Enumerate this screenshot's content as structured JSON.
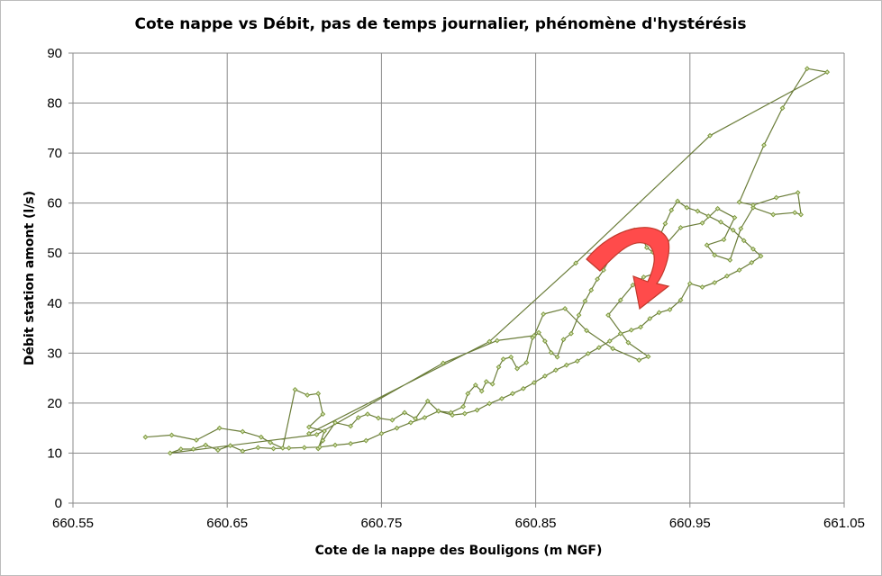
{
  "chart_data": {
    "type": "scatter",
    "title": "Cote nappe vs Débit, pas de temps journalier, phénomène d'hystérésis",
    "xlabel": "Cote de la nappe des Bouligons (m NGF)",
    "ylabel": "Débit station amont (l/s)",
    "xlim": [
      660.55,
      661.05
    ],
    "ylim": [
      0,
      90
    ],
    "x_ticks": [
      660.55,
      660.65,
      660.75,
      660.85,
      660.95,
      661.05
    ],
    "x_tick_labels": [
      "660.55",
      "660.65",
      "660.75",
      "660.85",
      "660.95",
      "661.05"
    ],
    "y_ticks": [
      0,
      10,
      20,
      30,
      40,
      50,
      60,
      70,
      80,
      90
    ],
    "y_tick_labels": [
      "0",
      "10",
      "20",
      "30",
      "40",
      "50",
      "60",
      "70",
      "80",
      "90"
    ],
    "grid": true,
    "legend": "none",
    "colors": {
      "line": "#6b7d3a",
      "marker": "#7e9a3e",
      "arrow_fill": "#ff4b4b",
      "arrow_stroke": "#c0392b"
    },
    "annotation": {
      "type": "curved-arrow",
      "meaning": "counter-clockwise hysteresis direction"
    },
    "series": [
      {
        "values": [
          [
            660.597,
            13.2
          ],
          [
            660.614,
            13.6
          ],
          [
            660.63,
            12.6
          ],
          [
            660.645,
            15.0
          ],
          [
            660.66,
            14.3
          ],
          [
            660.672,
            13.2
          ],
          [
            660.678,
            12.1
          ],
          [
            660.686,
            11.0
          ],
          [
            660.694,
            22.7
          ],
          [
            660.702,
            21.6
          ],
          [
            660.709,
            21.9
          ],
          [
            660.712,
            17.8
          ],
          [
            660.703,
            15.2
          ],
          [
            660.713,
            14.4
          ],
          [
            660.709,
            10.9
          ],
          [
            660.712,
            12.5
          ],
          [
            660.72,
            16.1
          ],
          [
            660.73,
            15.4
          ],
          [
            660.735,
            17.1
          ],
          [
            660.741,
            17.8
          ],
          [
            660.748,
            17.0
          ],
          [
            660.757,
            16.6
          ],
          [
            660.765,
            18.1
          ],
          [
            660.772,
            16.9
          ],
          [
            660.78,
            20.4
          ],
          [
            660.787,
            18.4
          ],
          [
            660.795,
            18.1
          ],
          [
            660.803,
            19.3
          ],
          [
            660.806,
            21.9
          ],
          [
            660.811,
            23.6
          ],
          [
            660.815,
            22.4
          ],
          [
            660.818,
            24.3
          ],
          [
            660.822,
            23.8
          ],
          [
            660.826,
            27.2
          ],
          [
            660.829,
            28.8
          ],
          [
            660.834,
            29.2
          ],
          [
            660.838,
            26.9
          ],
          [
            660.844,
            28.1
          ],
          [
            660.848,
            33.1
          ],
          [
            660.852,
            34.1
          ],
          [
            660.856,
            32.4
          ],
          [
            660.86,
            30.1
          ],
          [
            660.864,
            29.2
          ],
          [
            660.868,
            32.7
          ],
          [
            660.873,
            33.9
          ],
          [
            660.878,
            37.6
          ],
          [
            660.882,
            40.4
          ],
          [
            660.886,
            42.6
          ],
          [
            660.89,
            44.8
          ],
          [
            660.894,
            46.6
          ],
          [
            660.898,
            48.9
          ],
          [
            660.902,
            50.4
          ],
          [
            660.906,
            52.1
          ],
          [
            660.91,
            53.6
          ],
          [
            660.914,
            54.6
          ],
          [
            660.918,
            53.8
          ],
          [
            660.922,
            51.1
          ],
          [
            660.926,
            50.2
          ],
          [
            660.93,
            53.1
          ],
          [
            660.934,
            55.9
          ],
          [
            660.938,
            58.6
          ],
          [
            660.942,
            60.4
          ],
          [
            660.948,
            59.1
          ],
          [
            660.955,
            58.4
          ],
          [
            660.962,
            57.4
          ],
          [
            660.97,
            56.2
          ],
          [
            660.978,
            54.6
          ],
          [
            660.985,
            52.5
          ],
          [
            660.991,
            50.8
          ],
          [
            660.996,
            49.4
          ],
          [
            660.99,
            48.1
          ],
          [
            660.982,
            46.6
          ],
          [
            660.974,
            45.4
          ],
          [
            660.966,
            44.1
          ],
          [
            660.958,
            43.2
          ],
          [
            660.95,
            43.9
          ],
          [
            660.944,
            40.6
          ],
          [
            660.937,
            38.7
          ],
          [
            660.93,
            38.1
          ],
          [
            660.924,
            36.9
          ],
          [
            660.918,
            35.2
          ],
          [
            660.912,
            34.6
          ],
          [
            660.905,
            33.9
          ],
          [
            660.898,
            32.4
          ],
          [
            660.891,
            31.1
          ],
          [
            660.884,
            29.9
          ],
          [
            660.877,
            28.4
          ],
          [
            660.87,
            27.6
          ],
          [
            660.863,
            26.6
          ],
          [
            660.856,
            25.4
          ],
          [
            660.849,
            24.1
          ],
          [
            660.842,
            22.9
          ],
          [
            660.835,
            21.9
          ],
          [
            660.828,
            20.9
          ],
          [
            660.82,
            19.9
          ],
          [
            660.812,
            18.6
          ],
          [
            660.804,
            17.9
          ],
          [
            660.796,
            17.6
          ],
          [
            660.787,
            18.4
          ],
          [
            660.778,
            17.1
          ],
          [
            660.769,
            16.1
          ],
          [
            660.76,
            15.0
          ],
          [
            660.75,
            13.9
          ],
          [
            660.74,
            12.5
          ],
          [
            660.73,
            11.9
          ],
          [
            660.72,
            11.6
          ],
          [
            660.71,
            11.2
          ],
          [
            660.7,
            11.1
          ],
          [
            660.69,
            11.0
          ],
          [
            660.68,
            10.9
          ],
          [
            660.67,
            11.1
          ],
          [
            660.66,
            10.4
          ],
          [
            660.652,
            11.5
          ],
          [
            660.644,
            10.6
          ],
          [
            660.636,
            11.6
          ],
          [
            660.628,
            10.8
          ],
          [
            660.62,
            10.8
          ],
          [
            660.613,
            10.0
          ],
          [
            660.708,
            13.7
          ],
          [
            660.79,
            28.0
          ],
          [
            660.825,
            32.5
          ],
          [
            660.849,
            33.5
          ],
          [
            660.855,
            37.8
          ],
          [
            660.869,
            38.9
          ],
          [
            660.883,
            34.5
          ],
          [
            660.9,
            30.9
          ],
          [
            660.917,
            28.6
          ],
          [
            660.923,
            29.3
          ],
          [
            660.91,
            32.1
          ],
          [
            660.897,
            37.6
          ],
          [
            660.905,
            40.6
          ],
          [
            660.913,
            43.6
          ],
          [
            660.92,
            45.2
          ],
          [
            660.927,
            45.9
          ],
          [
            660.934,
            51.6
          ],
          [
            660.944,
            55.1
          ],
          [
            660.958,
            56.0
          ],
          [
            660.968,
            58.9
          ],
          [
            660.979,
            57.1
          ],
          [
            660.972,
            52.7
          ],
          [
            660.961,
            51.6
          ],
          [
            660.966,
            49.6
          ],
          [
            660.976,
            48.6
          ],
          [
            660.983,
            54.9
          ],
          [
            660.991,
            59.1
          ],
          [
            661.004,
            57.7
          ],
          [
            661.018,
            58.1
          ],
          [
            661.022,
            57.7
          ],
          [
            661.02,
            62.1
          ],
          [
            661.006,
            61.1
          ],
          [
            660.991,
            59.6
          ],
          [
            660.982,
            60.2
          ],
          [
            660.998,
            71.6
          ],
          [
            661.01,
            79.0
          ],
          [
            661.026,
            86.9
          ],
          [
            661.039,
            86.2
          ],
          [
            660.963,
            73.5
          ],
          [
            660.876,
            48.0
          ],
          [
            660.82,
            32.3
          ],
          [
            660.703,
            13.9
          ]
        ]
      }
    ]
  }
}
